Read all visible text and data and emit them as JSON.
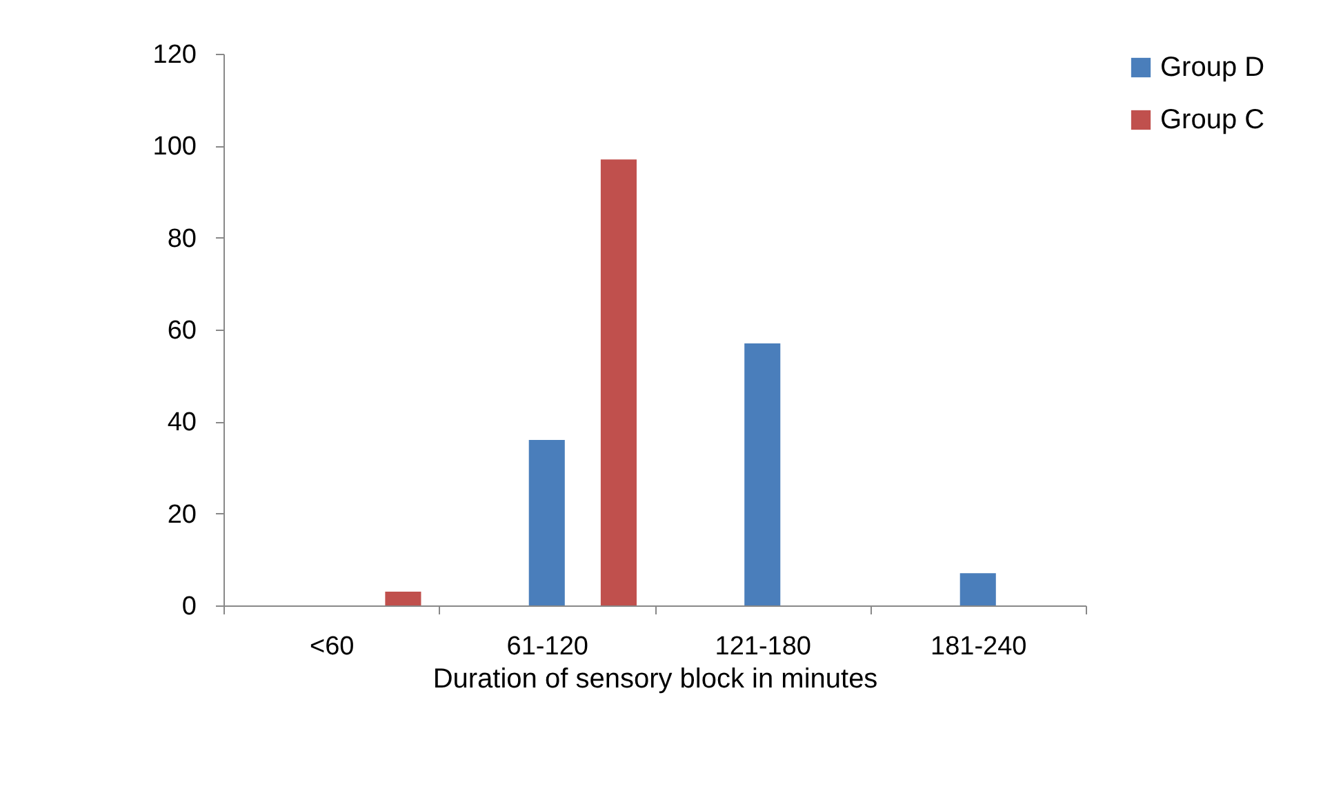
{
  "chart_data": {
    "type": "bar",
    "xlabel": "Duration of sensory block in minutes",
    "categories": [
      "<60",
      "61-120",
      "121-180",
      "181-240"
    ],
    "series": [
      {
        "name": "Group D",
        "color": "#4a7ebb",
        "values": [
          0,
          36,
          57,
          7
        ]
      },
      {
        "name": "Group C",
        "color": "#c0504d",
        "values": [
          3,
          97,
          0,
          0
        ]
      }
    ],
    "ylim": [
      0,
      120
    ],
    "yticks": [
      0,
      20,
      40,
      60,
      80,
      100,
      120
    ],
    "grid": false,
    "legend": "right"
  }
}
